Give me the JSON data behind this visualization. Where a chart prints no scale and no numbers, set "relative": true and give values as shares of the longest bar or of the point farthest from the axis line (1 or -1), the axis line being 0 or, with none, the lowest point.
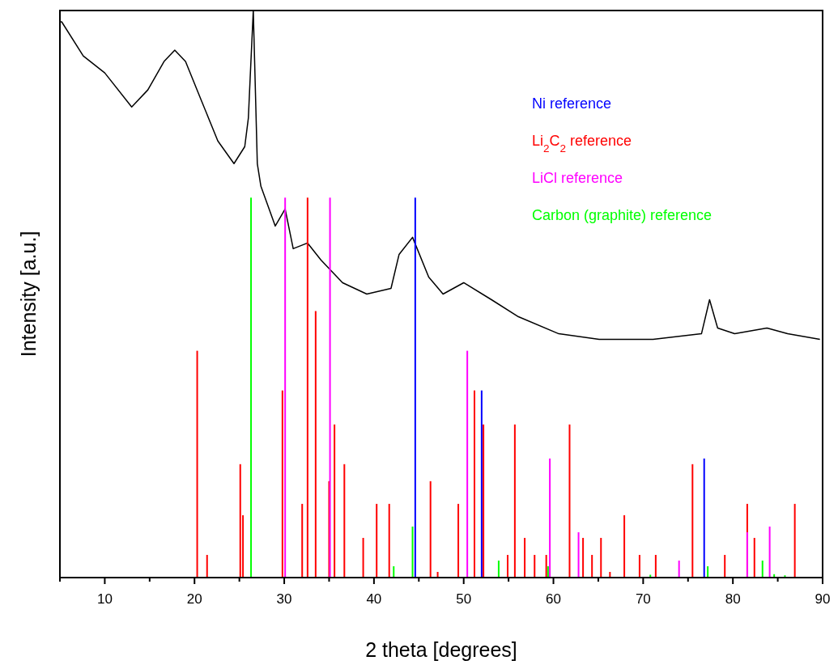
{
  "chart_data": {
    "type": "bar",
    "relative": true,
    "xlabel": "2 theta [degrees]",
    "ylabel": "Intensity [a.u.]",
    "xlim": [
      5,
      90
    ],
    "xticks": [
      {
        "value": 5,
        "label": null
      },
      10,
      {
        "value": 15,
        "label": null
      },
      20,
      {
        "value": 25,
        "label": null
      },
      30,
      {
        "value": 35,
        "label": null
      },
      40,
      {
        "value": 45,
        "label": null
      },
      50,
      {
        "value": 55,
        "label": null
      },
      60,
      {
        "value": 65,
        "label": null
      },
      70,
      {
        "value": 75,
        "label": null
      },
      80,
      {
        "value": 85,
        "label": null
      },
      90
    ],
    "legend": "top right",
    "grid": false,
    "tick_labels": "x",
    "series": [
      {
        "type": "line",
        "color": "#000000",
        "x": [
          5.0,
          5.2,
          7.6,
          10.0,
          13.0,
          14.8,
          16.6,
          17.8,
          19.0,
          20.8,
          22.6,
          24.4,
          25.6,
          26.0,
          26.2,
          26.55,
          26.8,
          27.0,
          27.4,
          29.0,
          30.1,
          31.0,
          32.6,
          34.1,
          36.5,
          39.2,
          41.9,
          42.8,
          44.3,
          46.1,
          47.7,
          50.0,
          53.1,
          56.1,
          60.6,
          65.1,
          71.1,
          76.5,
          77.4,
          78.3,
          80.2,
          83.8,
          86.1,
          89.7
        ],
        "values": [
          0.98,
          0.98,
          0.92,
          0.89,
          0.83,
          0.86,
          0.91,
          0.93,
          0.91,
          0.84,
          0.77,
          0.73,
          0.76,
          0.81,
          0.88,
          1.0,
          0.85,
          0.73,
          0.69,
          0.62,
          0.65,
          0.58,
          0.59,
          0.56,
          0.52,
          0.5,
          0.51,
          0.57,
          0.6,
          0.53,
          0.5,
          0.52,
          0.49,
          0.46,
          0.43,
          0.42,
          0.42,
          0.43,
          0.49,
          0.44,
          0.43,
          0.44,
          0.43,
          0.42
        ]
      },
      {
        "name": "Ni reference",
        "color": "#0000ff",
        "x": [
          44.6,
          52.0,
          76.8
        ],
        "values": [
          0.67,
          0.33,
          0.21
        ]
      },
      {
        "name": "Li$_{2}$C$_{2}$ reference",
        "color": "#ff0000",
        "x": [
          20.3,
          21.4,
          25.1,
          25.4,
          29.8,
          32.0,
          32.6,
          33.5,
          35.0,
          35.6,
          36.7,
          38.8,
          40.3,
          41.7,
          46.3,
          47.1,
          49.4,
          51.2,
          52.2,
          54.9,
          55.7,
          56.8,
          57.9,
          59.2,
          61.8,
          63.3,
          64.3,
          65.3,
          66.3,
          67.9,
          69.6,
          71.4,
          75.5,
          79.1,
          81.6,
          82.4,
          86.9
        ],
        "values": [
          0.4,
          0.04,
          0.2,
          0.11,
          0.33,
          0.13,
          0.67,
          0.47,
          0.17,
          0.27,
          0.2,
          0.07,
          0.13,
          0.13,
          0.17,
          0.01,
          0.13,
          0.33,
          0.27,
          0.04,
          0.27,
          0.07,
          0.04,
          0.04,
          0.27,
          0.07,
          0.04,
          0.07,
          0.01,
          0.11,
          0.04,
          0.04,
          0.2,
          0.04,
          0.13,
          0.07,
          0.13
        ]
      },
      {
        "name": "LiCl reference",
        "color": "#ff00ff",
        "x": [
          30.1,
          35.1,
          50.4,
          59.6,
          62.8,
          74.0,
          81.6,
          84.1
        ],
        "values": [
          0.67,
          0.67,
          0.4,
          0.21,
          0.08,
          0.03,
          0.08,
          0.09
        ]
      },
      {
        "name": "Carbon (graphite) reference",
        "color": "#00ff00",
        "x": [
          26.3,
          42.2,
          44.3,
          53.9,
          59.4,
          70.8,
          77.2,
          83.3,
          84.6,
          85.8
        ],
        "values": [
          0.67,
          0.02,
          0.09,
          0.03,
          0.02,
          0.005,
          0.02,
          0.03,
          0.006,
          0.004
        ]
      }
    ]
  }
}
